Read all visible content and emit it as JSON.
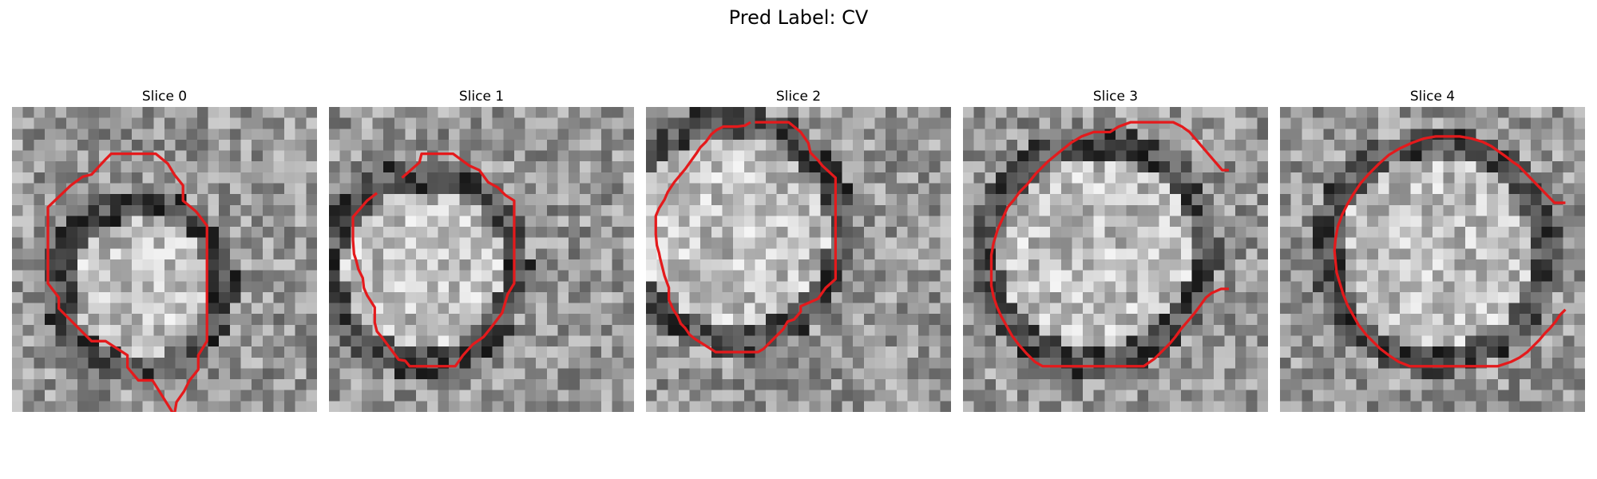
{
  "figure": {
    "title": "Pred Label: CV",
    "overlay_color": "#e41a1c",
    "panels": [
      {
        "title": "Slice 0",
        "contour": [
          [
            14.9,
            29
          ],
          [
            14.9,
            28.3
          ],
          [
            12.9,
            25.1
          ],
          [
            11.6,
            25.1
          ],
          [
            10.6,
            23.9
          ],
          [
            10.6,
            22.8
          ],
          [
            8.6,
            21.5
          ],
          [
            7.3,
            21.5
          ],
          [
            5.4,
            19.6
          ],
          [
            4.3,
            18.5
          ],
          [
            4.3,
            17.5
          ],
          [
            3.3,
            16.2
          ],
          [
            3.3,
            9.2
          ],
          [
            5.4,
            7.2
          ],
          [
            6.5,
            6.4
          ],
          [
            7.3,
            6.2
          ],
          [
            8.6,
            4.8
          ],
          [
            9.1,
            4.3
          ],
          [
            12.0,
            4.3
          ],
          [
            13.2,
            4.3
          ],
          [
            14.3,
            5.2
          ],
          [
            14.9,
            6.2
          ],
          [
            15.7,
            7.2
          ],
          [
            15.7,
            8.6
          ],
          [
            16.9,
            9.6
          ],
          [
            17.9,
            10.9
          ],
          [
            17.9,
            20.4
          ],
          [
            17.9,
            21.5
          ],
          [
            17.1,
            22.8
          ],
          [
            17.1,
            24.1
          ],
          [
            16.3,
            25.1
          ],
          [
            15.8,
            26.1
          ],
          [
            15.1,
            27.1
          ],
          [
            14.9,
            28.3
          ]
        ]
      },
      {
        "title": "Slice 1",
        "contour": [
          [
            6.7,
            6.5
          ],
          [
            8.3,
            5.1
          ],
          [
            8.5,
            4.3
          ],
          [
            11.4,
            4.3
          ],
          [
            12.9,
            5.4
          ],
          [
            13.8,
            5.8
          ],
          [
            14.6,
            6.9
          ],
          [
            15.5,
            7.4
          ],
          [
            16.2,
            8.1
          ],
          [
            17.0,
            8.6
          ],
          [
            17.0,
            16.2
          ],
          [
            16.4,
            17.2
          ],
          [
            15.9,
            18.9
          ],
          [
            15.0,
            20.1
          ],
          [
            14.2,
            21.1
          ],
          [
            13.2,
            21.8
          ],
          [
            12.3,
            22.8
          ],
          [
            11.6,
            23.8
          ],
          [
            7.4,
            23.8
          ],
          [
            7.0,
            23.3
          ],
          [
            6.4,
            23.2
          ],
          [
            5.8,
            22.4
          ],
          [
            5.2,
            21.6
          ],
          [
            4.9,
            21.2
          ],
          [
            4.4,
            20.6
          ],
          [
            4.2,
            19.8
          ],
          [
            4.2,
            18.4
          ],
          [
            3.5,
            17.3
          ],
          [
            3.2,
            16.6
          ],
          [
            3.1,
            15.7
          ],
          [
            2.7,
            14.9
          ],
          [
            2.5,
            14.1
          ],
          [
            2.3,
            13.5
          ],
          [
            2.2,
            12.2
          ],
          [
            2.2,
            10.1
          ],
          [
            3.5,
            8.6
          ],
          [
            4.4,
            7.9
          ]
        ]
      },
      {
        "title": "Slice 2",
        "contour": [
          [
            10.0,
            1.4
          ],
          [
            10.8,
            1.4
          ],
          [
            13.1,
            1.4
          ],
          [
            14.2,
            2.3
          ],
          [
            14.9,
            3.3
          ],
          [
            15.1,
            4.2
          ],
          [
            15.8,
            4.9
          ],
          [
            16.2,
            5.4
          ],
          [
            17.4,
            6.5
          ],
          [
            17.4,
            13.1
          ],
          [
            17.4,
            15.8
          ],
          [
            16.5,
            16.6
          ],
          [
            15.8,
            17.6
          ],
          [
            14.2,
            18.3
          ],
          [
            14.2,
            18.8
          ],
          [
            13.6,
            19.5
          ],
          [
            13.0,
            19.7
          ],
          [
            12.6,
            20.4
          ],
          [
            11.6,
            21.4
          ],
          [
            10.8,
            22.2
          ],
          [
            10.3,
            22.5
          ],
          [
            8.9,
            22.5
          ],
          [
            6.4,
            22.5
          ],
          [
            4.5,
            21.3
          ],
          [
            4.0,
            20.9
          ],
          [
            3.6,
            20.3
          ],
          [
            3.2,
            19.9
          ],
          [
            2.9,
            19.2
          ],
          [
            2.5,
            18.6
          ],
          [
            2.1,
            17.7
          ],
          [
            2.1,
            16.6
          ],
          [
            1.7,
            15.5
          ],
          [
            1.5,
            14.7
          ],
          [
            1.3,
            13.9
          ],
          [
            1.2,
            13.4
          ],
          [
            1.0,
            12.7
          ],
          [
            0.9,
            11.7
          ],
          [
            0.9,
            10.0
          ],
          [
            1.2,
            9.3
          ],
          [
            1.7,
            8.5
          ],
          [
            2.0,
            7.8
          ],
          [
            2.6,
            6.9
          ],
          [
            3.1,
            6.3
          ],
          [
            3.6,
            5.7
          ],
          [
            4.1,
            5.0
          ],
          [
            4.6,
            4.3
          ],
          [
            5.0,
            3.7
          ],
          [
            5.5,
            3.2
          ],
          [
            6.0,
            2.5
          ],
          [
            6.5,
            2.1
          ],
          [
            7.1,
            1.8
          ],
          [
            7.7,
            1.8
          ],
          [
            8.4,
            1.8
          ],
          [
            9.1,
            1.7
          ],
          [
            9.6,
            1.4
          ]
        ]
      },
      {
        "title": "Slice 3",
        "contour": [
          [
            24.4,
            5.8
          ],
          [
            23.8,
            5.8
          ],
          [
            20.8,
            2.3
          ],
          [
            20.1,
            1.8
          ],
          [
            19.3,
            1.4
          ],
          [
            18.2,
            1.4
          ],
          [
            15.4,
            1.4
          ],
          [
            14.3,
            1.8
          ],
          [
            13.5,
            2.3
          ],
          [
            12.0,
            2.3
          ],
          [
            10.9,
            2.7
          ],
          [
            9.9,
            3.3
          ],
          [
            8.9,
            4.1
          ],
          [
            7.8,
            5.0
          ],
          [
            6.7,
            6.1
          ],
          [
            5.9,
            7.1
          ],
          [
            5.2,
            7.8
          ],
          [
            4.7,
            8.5
          ],
          [
            4.1,
            9.2
          ],
          [
            3.7,
            10.1
          ],
          [
            3.2,
            11.2
          ],
          [
            2.8,
            12.5
          ],
          [
            2.6,
            13.6
          ],
          [
            2.6,
            15.3
          ],
          [
            2.6,
            16.4
          ],
          [
            2.8,
            17.4
          ],
          [
            3.1,
            18.3
          ],
          [
            3.5,
            19.2
          ],
          [
            4.0,
            20.1
          ],
          [
            4.5,
            21.0
          ],
          [
            5.1,
            21.8
          ],
          [
            5.8,
            22.6
          ],
          [
            6.6,
            23.4
          ],
          [
            7.3,
            23.8
          ],
          [
            9.3,
            23.8
          ],
          [
            14.6,
            23.8
          ],
          [
            16.6,
            23.8
          ],
          [
            17.6,
            23.1
          ],
          [
            18.3,
            22.4
          ],
          [
            19.0,
            21.7
          ],
          [
            19.5,
            21.1
          ],
          [
            20.0,
            20.4
          ],
          [
            20.6,
            19.7
          ],
          [
            21.2,
            19.0
          ],
          [
            21.8,
            18.2
          ],
          [
            22.3,
            17.5
          ],
          [
            22.8,
            17.1
          ],
          [
            23.7,
            16.7
          ],
          [
            24.4,
            16.7
          ]
        ]
      },
      {
        "title": "Slice 4",
        "contour": [
          [
            26.2,
            8.8
          ],
          [
            25.2,
            8.8
          ],
          [
            21.9,
            5.4
          ],
          [
            21.3,
            5.0
          ],
          [
            20.8,
            4.6
          ],
          [
            20.1,
            4.1
          ],
          [
            19.4,
            3.6
          ],
          [
            18.6,
            3.2
          ],
          [
            17.6,
            2.9
          ],
          [
            16.5,
            2.7
          ],
          [
            15.5,
            2.7
          ],
          [
            14.3,
            2.7
          ],
          [
            13.2,
            2.9
          ],
          [
            12.1,
            3.3
          ],
          [
            11.0,
            3.8
          ],
          [
            10.0,
            4.4
          ],
          [
            9.1,
            5.2
          ],
          [
            8.2,
            6.1
          ],
          [
            7.4,
            7.0
          ],
          [
            6.8,
            7.9
          ],
          [
            6.2,
            8.9
          ],
          [
            5.7,
            9.9
          ],
          [
            5.3,
            11.0
          ],
          [
            5.1,
            12.1
          ],
          [
            5.0,
            13.2
          ],
          [
            5.1,
            14.2
          ],
          [
            5.2,
            15.2
          ],
          [
            5.5,
            16.2
          ],
          [
            5.8,
            17.2
          ],
          [
            6.2,
            18.2
          ],
          [
            6.7,
            19.1
          ],
          [
            7.2,
            20.0
          ],
          [
            7.9,
            20.9
          ],
          [
            8.6,
            21.6
          ],
          [
            9.2,
            22.2
          ],
          [
            10.0,
            22.8
          ],
          [
            10.9,
            23.4
          ],
          [
            11.9,
            23.8
          ],
          [
            13.0,
            23.8
          ],
          [
            20.0,
            23.8
          ],
          [
            21.2,
            23.4
          ],
          [
            22.0,
            23.0
          ],
          [
            22.7,
            22.5
          ],
          [
            23.3,
            21.9
          ],
          [
            23.8,
            21.4
          ],
          [
            24.3,
            20.8
          ],
          [
            24.8,
            20.3
          ],
          [
            25.3,
            19.7
          ],
          [
            25.7,
            19.1
          ],
          [
            26.2,
            18.6
          ]
        ]
      }
    ]
  }
}
